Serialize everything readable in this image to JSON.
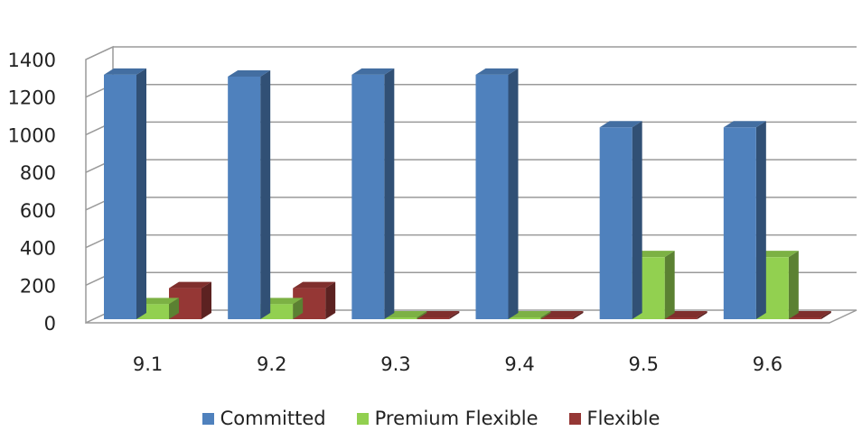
{
  "chart_data": {
    "type": "bar",
    "title": "",
    "xlabel": "",
    "ylabel": "",
    "categories": [
      "9.1",
      "9.2",
      "9.3",
      "9.4",
      "9.5",
      "9.6"
    ],
    "ylim": [
      0,
      1400
    ],
    "yticks": [
      0,
      200,
      400,
      600,
      800,
      1000,
      1200,
      1400
    ],
    "grid": true,
    "legend_position": "bottom",
    "style": "3d-clustered-column",
    "series": [
      {
        "name": "Committed",
        "color": "#4F81BD",
        "values": [
          1300,
          1290,
          1300,
          1300,
          1020,
          1020
        ]
      },
      {
        "name": "Premium Flexible",
        "color": "#92D050",
        "values": [
          80,
          80,
          0,
          0,
          330,
          330
        ]
      },
      {
        "name": "Flexible",
        "color": "#953735",
        "values": [
          165,
          165,
          0,
          0,
          0,
          0
        ]
      }
    ]
  }
}
